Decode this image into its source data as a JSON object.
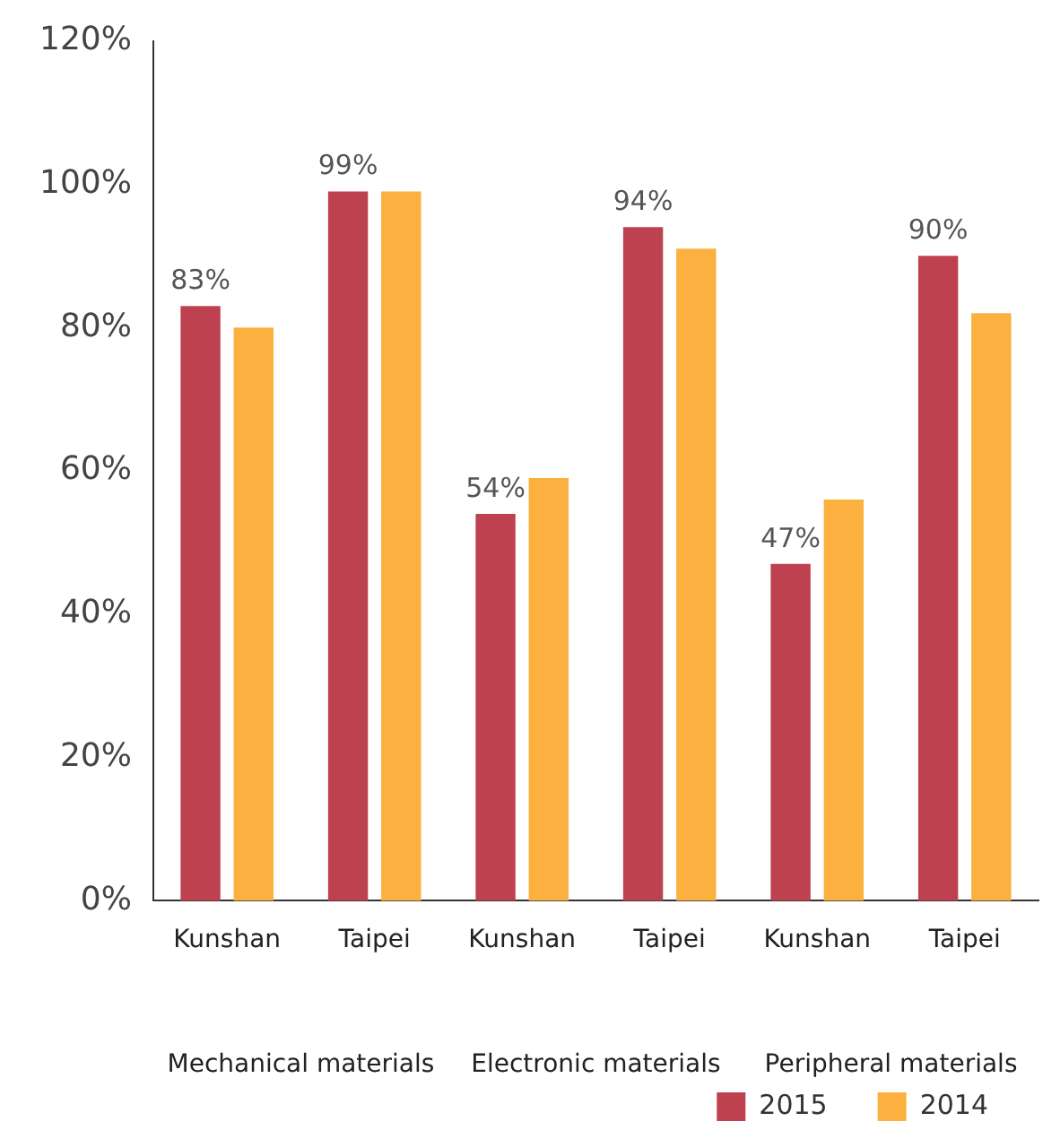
{
  "chart_data": {
    "type": "bar",
    "categories": [
      "Kunshan",
      "Taipei",
      "Kunshan",
      "Taipei",
      "Kunshan",
      "Taipei"
    ],
    "series": [
      {
        "name": "2015",
        "color": "#be4150",
        "values": [
          83,
          99,
          54,
          94,
          47,
          90
        ],
        "value_labels": [
          "83%",
          "99%",
          "54%",
          "94%",
          "47%",
          "90%"
        ]
      },
      {
        "name": "2014",
        "color": "#fbb040",
        "values": [
          80,
          99,
          59,
          91,
          56,
          82
        ]
      }
    ],
    "ylim": [
      0,
      120
    ],
    "yticks": [
      {
        "value": 0,
        "label": "0%"
      },
      {
        "value": 20,
        "label": "20%"
      },
      {
        "value": 40,
        "label": "40%"
      },
      {
        "value": 60,
        "label": "60%"
      },
      {
        "value": 80,
        "label": "80%"
      },
      {
        "value": 100,
        "label": "100%"
      },
      {
        "value": 120,
        "label": "120%"
      }
    ],
    "annotations": [
      "Mechanical materials",
      "Electronic materials",
      "Peripheral materials"
    ],
    "grid": false,
    "legend": "bottom right"
  }
}
